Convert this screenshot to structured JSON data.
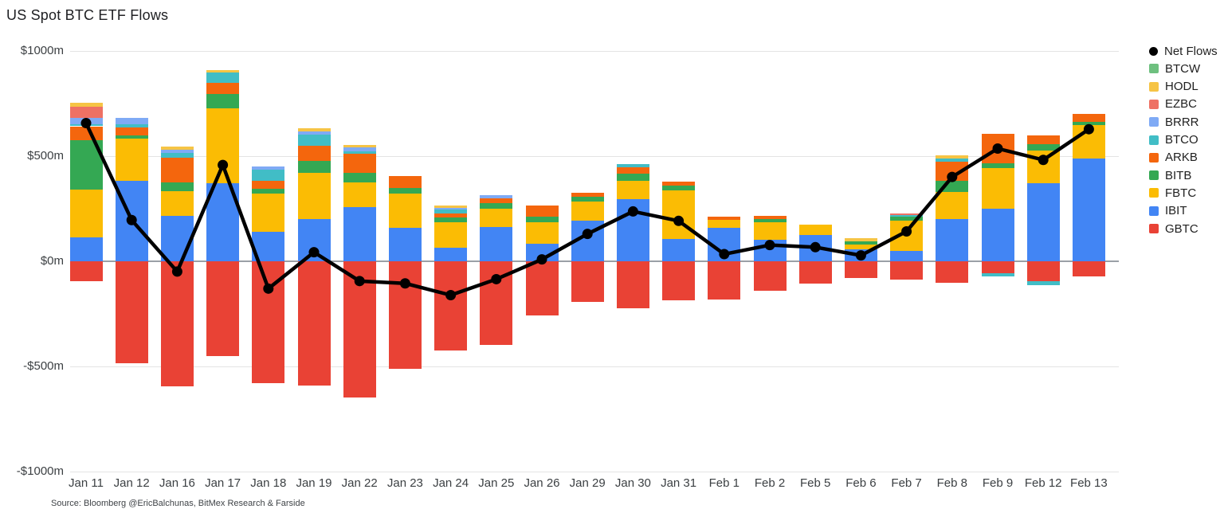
{
  "title": "US Spot BTC ETF Flows",
  "source": "Source: Bloomberg @EricBalchunas, BitMex Research & Farside",
  "chart_data": {
    "type": "bar",
    "subtype": "stacked-bars-with-net-line",
    "unit": "$m",
    "ylim": [
      -1000,
      1000
    ],
    "grid": "horizontal",
    "legend_position": "right",
    "y_ticks": [
      {
        "label": "$1000m",
        "value": 1000
      },
      {
        "label": "$500m",
        "value": 500
      },
      {
        "label": "$0m",
        "value": 0
      },
      {
        "label": "-$500m",
        "value": -500
      },
      {
        "label": "-$1000m",
        "value": -1000
      }
    ],
    "categories": [
      "Jan 11",
      "Jan 12",
      "Jan 16",
      "Jan 17",
      "Jan 18",
      "Jan 19",
      "Jan 22",
      "Jan 23",
      "Jan 24",
      "Jan 25",
      "Jan 26",
      "Jan 29",
      "Jan 30",
      "Jan 31",
      "Feb 1",
      "Feb 2",
      "Feb 5",
      "Feb 6",
      "Feb 7",
      "Feb 8",
      "Feb 9",
      "Feb 12",
      "Feb 13"
    ],
    "series": [
      {
        "name": "GBTC",
        "color": "#e94235",
        "values": [
          -95,
          -486,
          -593,
          -451,
          -581,
          -590,
          -648,
          -511,
          -425,
          -398,
          -256,
          -194,
          -224,
          -187,
          -180,
          -140,
          -106,
          -80,
          -86,
          -102,
          -56,
          -93,
          -72
        ]
      },
      {
        "name": "IBIT",
        "color": "#4285f4",
        "values": [
          112,
          384,
          217,
          373,
          142,
          202,
          256,
          158,
          63,
          162,
          82,
          195,
          295,
          107,
          160,
          103,
          126,
          57,
          50,
          199,
          250,
          372,
          488
        ]
      },
      {
        "name": "FBTC",
        "color": "#fbbc04",
        "values": [
          230,
          199,
          115,
          353,
          179,
          218,
          118,
          164,
          124,
          88,
          105,
          88,
          88,
          231,
          38,
          82,
          47,
          23,
          143,
          130,
          192,
          154,
          159
        ]
      },
      {
        "name": "BITB",
        "color": "#34a853",
        "values": [
          235,
          16,
          44,
          68,
          25,
          59,
          48,
          25,
          21,
          25,
          24,
          25,
          34,
          23,
          0,
          14,
          0,
          13,
          18,
          55,
          25,
          29,
          15
        ]
      },
      {
        "name": "ARKB",
        "color": "#f4660d",
        "values": [
          65,
          37,
          118,
          54,
          38,
          69,
          91,
          59,
          21,
          25,
          54,
          16,
          29,
          18,
          16,
          18,
          0,
          0,
          0,
          88,
          140,
          42,
          38
        ]
      },
      {
        "name": "BTCO",
        "color": "#41bdc6",
        "values": [
          10,
          15,
          20,
          50,
          53,
          53,
          8,
          0,
          16,
          0,
          0,
          0,
          15,
          0,
          0,
          0,
          0,
          0,
          8,
          16,
          -15,
          -22,
          0
        ]
      },
      {
        "name": "BRRR",
        "color": "#7faaf5",
        "values": [
          28,
          31,
          15,
          0,
          14,
          16,
          19,
          0,
          9,
          13,
          0,
          0,
          0,
          0,
          0,
          0,
          0,
          0,
          0,
          0,
          0,
          0,
          0
        ]
      },
      {
        "name": "EZBC",
        "color": "#ee7164",
        "values": [
          53,
          0,
          0,
          0,
          0,
          0,
          0,
          0,
          0,
          0,
          0,
          0,
          0,
          0,
          0,
          0,
          0,
          0,
          9,
          0,
          0,
          0,
          0
        ]
      },
      {
        "name": "HODL",
        "color": "#f6c445",
        "values": [
          19,
          0,
          15,
          11,
          0,
          16,
          14,
          0,
          10,
          0,
          0,
          0,
          0,
          0,
          0,
          0,
          0,
          15,
          0,
          15,
          0,
          0,
          0
        ]
      },
      {
        "name": "BTCW",
        "color": "#6ec07f",
        "values": [
          0,
          0,
          0,
          0,
          0,
          0,
          0,
          0,
          0,
          0,
          0,
          0,
          0,
          0,
          0,
          0,
          0,
          0,
          0,
          0,
          0,
          0,
          0
        ]
      }
    ],
    "line_series": {
      "name": "Net Flows",
      "color": "#000000",
      "values": [
        657,
        196,
        -49,
        458,
        -130,
        43,
        -94,
        -105,
        -161,
        -85,
        9,
        130,
        237,
        192,
        34,
        77,
        67,
        28,
        142,
        401,
        536,
        482,
        628
      ]
    },
    "legend": [
      {
        "label": "Net Flows",
        "color": "#000000",
        "shape": "circle"
      },
      {
        "label": "BTCW",
        "color": "#6ec07f",
        "shape": "square"
      },
      {
        "label": "HODL",
        "color": "#f6c445",
        "shape": "square"
      },
      {
        "label": "EZBC",
        "color": "#ee7164",
        "shape": "square"
      },
      {
        "label": "BRRR",
        "color": "#7faaf5",
        "shape": "square"
      },
      {
        "label": "BTCO",
        "color": "#41bdc6",
        "shape": "square"
      },
      {
        "label": "ARKB",
        "color": "#f4660d",
        "shape": "square"
      },
      {
        "label": "BITB",
        "color": "#34a853",
        "shape": "square"
      },
      {
        "label": "FBTC",
        "color": "#fbbc04",
        "shape": "square"
      },
      {
        "label": "IBIT",
        "color": "#4285f4",
        "shape": "square"
      },
      {
        "label": "GBTC",
        "color": "#e94235",
        "shape": "square"
      }
    ]
  }
}
